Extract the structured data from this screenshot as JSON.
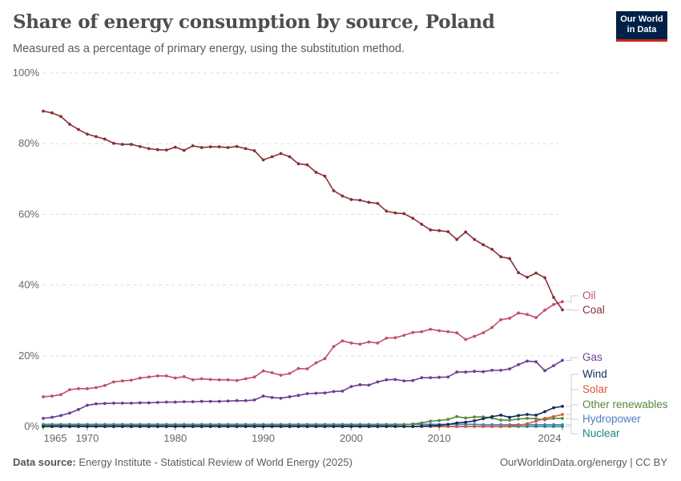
{
  "header": {
    "title": "Share of energy consumption by source, Poland",
    "subtitle": "Measured as a percentage of primary energy, using the substitution method.",
    "logo": "Our World in Data"
  },
  "footer": {
    "source_label": "Data source:",
    "source": "Energy Institute - Statistical Review of World Energy (2025)",
    "credit": "OurWorldinData.org/energy | CC BY"
  },
  "chart_data": {
    "type": "line",
    "title": "Share of energy consumption by source, Poland",
    "xlim": [
      1965,
      2024
    ],
    "ylim": [
      0,
      100
    ],
    "y_ticks": [
      "0%",
      "20%",
      "40%",
      "60%",
      "80%",
      "100%"
    ],
    "x_ticks": [
      "1965",
      "1970",
      "1980",
      "1990",
      "2000",
      "2010",
      "2024"
    ],
    "x_tick_values": [
      1965,
      1970,
      1980,
      1990,
      2000,
      2010,
      2024
    ],
    "grid": "horizontal dashed",
    "legend": "right, inline labels",
    "x_start": 1965,
    "series": [
      {
        "name": "Coal",
        "color": "#883039",
        "values": [
          89.2,
          88.7,
          87.7,
          85.5,
          84.0,
          82.7,
          82.0,
          81.3,
          80.1,
          79.8,
          79.8,
          79.2,
          78.6,
          78.3,
          78.2,
          79.0,
          78.1,
          79.4,
          78.9,
          79.1,
          79.1,
          78.9,
          79.2,
          78.6,
          78.0,
          75.4,
          76.3,
          77.2,
          76.3,
          74.3,
          74.0,
          71.9,
          70.8,
          66.7,
          65.2,
          64.2,
          64.0,
          63.4,
          63.1,
          60.9,
          60.4,
          60.2,
          58.9,
          57.2,
          55.6,
          55.4,
          55.1,
          52.9,
          55.0,
          52.9,
          51.4,
          50.1,
          48.0,
          47.5,
          43.5,
          42.2,
          43.4,
          42.1,
          36.5,
          33.0
        ]
      },
      {
        "name": "Oil",
        "color": "#c15065",
        "values": [
          8.4,
          8.6,
          9.0,
          10.4,
          10.7,
          10.7,
          11.0,
          11.6,
          12.6,
          12.9,
          13.1,
          13.7,
          14.0,
          14.3,
          14.3,
          13.7,
          14.1,
          13.2,
          13.5,
          13.3,
          13.2,
          13.2,
          13.0,
          13.5,
          14.0,
          15.7,
          15.2,
          14.5,
          15.0,
          16.4,
          16.3,
          18.0,
          19.2,
          22.6,
          24.2,
          23.6,
          23.3,
          23.9,
          23.6,
          25.0,
          25.1,
          25.8,
          26.6,
          26.8,
          27.5,
          27.1,
          26.8,
          26.5,
          24.6,
          25.5,
          26.5,
          28.0,
          30.2,
          30.6,
          32.1,
          31.7,
          30.8,
          32.9,
          34.5,
          35.3
        ]
      },
      {
        "name": "Gas",
        "color": "#6d3e91",
        "values": [
          2.3,
          2.6,
          3.1,
          3.8,
          4.8,
          6.0,
          6.4,
          6.5,
          6.6,
          6.6,
          6.6,
          6.7,
          6.7,
          6.8,
          6.9,
          6.9,
          7.0,
          7.0,
          7.1,
          7.1,
          7.1,
          7.2,
          7.3,
          7.3,
          7.5,
          8.6,
          8.2,
          8.0,
          8.4,
          8.8,
          9.3,
          9.4,
          9.5,
          9.9,
          10.0,
          11.3,
          11.8,
          11.7,
          12.6,
          13.2,
          13.3,
          12.9,
          13.0,
          13.8,
          13.8,
          13.9,
          14.0,
          15.4,
          15.4,
          15.6,
          15.5,
          15.9,
          15.9,
          16.3,
          17.5,
          18.5,
          18.3,
          15.8,
          17.2,
          18.7
        ]
      },
      {
        "name": "Wind",
        "color": "#0f2d5c",
        "values": [
          0,
          0,
          0,
          0,
          0,
          0,
          0,
          0,
          0,
          0,
          0,
          0,
          0,
          0,
          0,
          0,
          0,
          0,
          0,
          0,
          0,
          0,
          0,
          0,
          0,
          0,
          0,
          0,
          0,
          0,
          0,
          0,
          0,
          0,
          0,
          0,
          0,
          0,
          0,
          0,
          0,
          0,
          0,
          0.1,
          0.2,
          0.3,
          0.6,
          1.0,
          1.2,
          1.6,
          2.2,
          2.8,
          3.2,
          2.6,
          3.1,
          3.4,
          3.2,
          4.2,
          5.3,
          5.7
        ]
      },
      {
        "name": "Solar",
        "color": "#d2593b",
        "values": [
          0,
          0,
          0,
          0,
          0,
          0,
          0,
          0,
          0,
          0,
          0,
          0,
          0,
          0,
          0,
          0,
          0,
          0,
          0,
          0,
          0,
          0,
          0,
          0,
          0,
          0,
          0,
          0,
          0,
          0,
          0,
          0,
          0,
          0,
          0,
          0,
          0,
          0,
          0,
          0,
          0,
          0,
          0,
          0,
          0,
          0,
          0,
          0,
          0,
          0,
          0,
          0,
          0,
          0.1,
          0.3,
          0.8,
          1.5,
          2.3,
          2.8,
          3.4
        ]
      },
      {
        "name": "Other renewables",
        "color": "#58883c",
        "values": [
          0.3,
          0.3,
          0.3,
          0.3,
          0.3,
          0.3,
          0.3,
          0.3,
          0.3,
          0.3,
          0.3,
          0.3,
          0.3,
          0.3,
          0.3,
          0.3,
          0.3,
          0.3,
          0.3,
          0.3,
          0.3,
          0.3,
          0.3,
          0.3,
          0.3,
          0.3,
          0.3,
          0.3,
          0.3,
          0.3,
          0.3,
          0.3,
          0.3,
          0.3,
          0.3,
          0.3,
          0.3,
          0.3,
          0.3,
          0.3,
          0.4,
          0.5,
          0.7,
          1.0,
          1.5,
          1.7,
          2.0,
          2.8,
          2.4,
          2.7,
          2.7,
          2.4,
          1.8,
          1.8,
          2.1,
          2.3,
          2.2,
          1.9,
          2.3,
          2.3
        ]
      },
      {
        "name": "Hydropower",
        "color": "#4a7ec4",
        "values": [
          0.6,
          0.6,
          0.6,
          0.6,
          0.6,
          0.6,
          0.6,
          0.6,
          0.6,
          0.6,
          0.6,
          0.6,
          0.6,
          0.6,
          0.6,
          0.6,
          0.6,
          0.6,
          0.6,
          0.6,
          0.6,
          0.6,
          0.6,
          0.6,
          0.6,
          0.6,
          0.6,
          0.6,
          0.6,
          0.6,
          0.6,
          0.6,
          0.6,
          0.6,
          0.6,
          0.6,
          0.6,
          0.6,
          0.6,
          0.6,
          0.6,
          0.6,
          0.6,
          0.6,
          0.6,
          0.6,
          0.6,
          0.6,
          0.6,
          0.6,
          0.5,
          0.5,
          0.5,
          0.5,
          0.5,
          0.5,
          0.5,
          0.5,
          0.5,
          0.5
        ]
      },
      {
        "name": "Nuclear",
        "color": "#18877e",
        "values": [
          0,
          0,
          0,
          0,
          0,
          0,
          0,
          0,
          0,
          0,
          0,
          0,
          0,
          0,
          0,
          0,
          0,
          0,
          0,
          0,
          0,
          0,
          0,
          0,
          0,
          0,
          0,
          0,
          0,
          0,
          0,
          0,
          0,
          0,
          0,
          0,
          0,
          0,
          0,
          0,
          0,
          0,
          0,
          0,
          0,
          0,
          0,
          0,
          0,
          0,
          0,
          0,
          0,
          0,
          0,
          0,
          0,
          0,
          0,
          0
        ]
      }
    ]
  }
}
